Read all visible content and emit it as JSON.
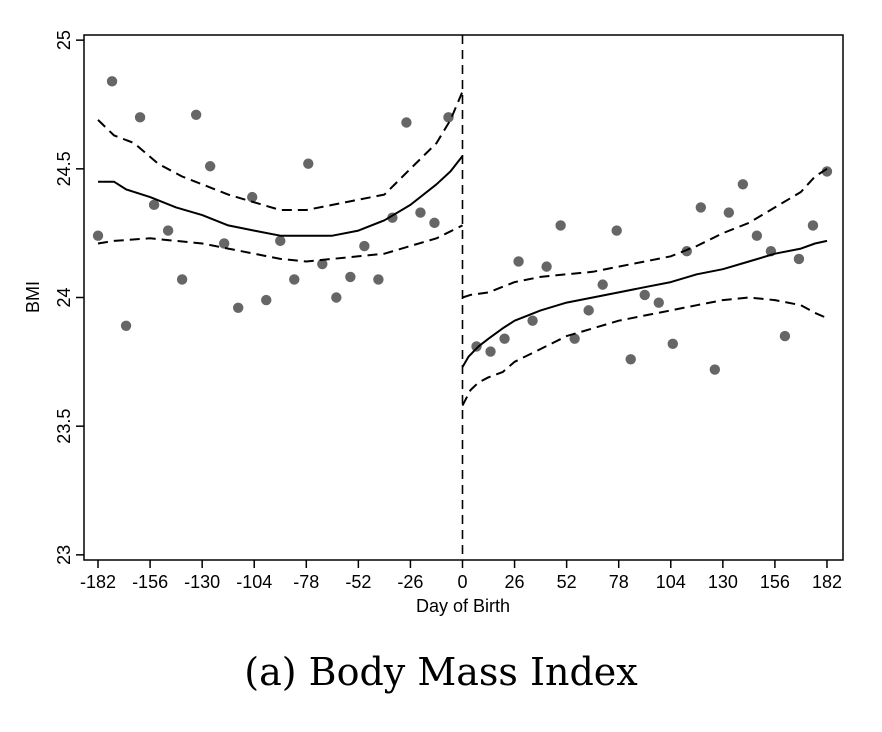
{
  "caption": "(a) Body Mass Index",
  "chart_data": {
    "type": "scatter",
    "title": "",
    "xlabel": "Day of Birth",
    "ylabel": "BMI",
    "xlim": [
      -189,
      190
    ],
    "ylim": [
      22.98,
      25.02
    ],
    "x_ticks": [
      -182,
      -156,
      -130,
      -104,
      -78,
      -52,
      -26,
      0,
      26,
      52,
      78,
      104,
      130,
      156,
      182
    ],
    "y_ticks": [
      23,
      23.5,
      24,
      24.5,
      25
    ],
    "y_tick_labels": [
      "23",
      "23.5",
      "24",
      "24.5",
      "25"
    ],
    "grid": false,
    "cutoff_line": {
      "x": 0,
      "style": "dashed"
    },
    "series": [
      {
        "kind": "points",
        "color": "#666666",
        "x": [
          -182,
          -175,
          -168,
          -161,
          -154,
          -147,
          -140,
          -133,
          -126,
          -119,
          -112,
          -105,
          -98,
          -91,
          -84,
          -77,
          -70,
          -63,
          -56,
          -49,
          -42,
          -35,
          -28,
          -21,
          -14,
          -7,
          7,
          14,
          21,
          28,
          35,
          42,
          49,
          56,
          63,
          70,
          77,
          84,
          91,
          98,
          105,
          112,
          119,
          126,
          133,
          140,
          147,
          154,
          161,
          168,
          175,
          182
        ],
        "y": [
          24.24,
          24.84,
          23.89,
          24.7,
          24.36,
          24.26,
          24.07,
          24.71,
          24.51,
          24.21,
          23.96,
          24.39,
          23.99,
          24.22,
          24.07,
          24.52,
          24.13,
          24.0,
          24.08,
          24.2,
          24.07,
          24.31,
          24.68,
          24.33,
          24.29,
          24.7,
          23.81,
          23.79,
          23.84,
          24.14,
          23.91,
          24.12,
          24.28,
          23.84,
          23.95,
          24.05,
          24.26,
          23.76,
          24.01,
          23.98,
          23.82,
          24.18,
          24.35,
          23.72,
          24.33,
          24.44,
          24.24,
          24.18,
          23.85,
          24.15,
          24.28,
          24.49
        ]
      },
      {
        "kind": "fit",
        "side": "left",
        "style": "solid",
        "x": [
          -182,
          -174,
          -168,
          -156,
          -143,
          -130,
          -117,
          -104,
          -91,
          -78,
          -65,
          -52,
          -39,
          -26,
          -13,
          -6,
          0
        ],
        "y": [
          24.45,
          24.45,
          24.42,
          24.39,
          24.35,
          24.32,
          24.28,
          24.26,
          24.24,
          24.24,
          24.24,
          24.26,
          24.3,
          24.36,
          24.44,
          24.49,
          24.55
        ]
      },
      {
        "kind": "ci_upper",
        "side": "left",
        "style": "dashed",
        "x": [
          -182,
          -174,
          -164,
          -152,
          -140,
          -130,
          -117,
          -104,
          -91,
          -78,
          -65,
          -52,
          -39,
          -26,
          -13,
          -6,
          0
        ],
        "y": [
          24.69,
          24.63,
          24.6,
          24.52,
          24.47,
          24.44,
          24.4,
          24.37,
          24.34,
          24.34,
          24.36,
          24.38,
          24.4,
          24.5,
          24.6,
          24.69,
          24.8
        ]
      },
      {
        "kind": "ci_lower",
        "side": "left",
        "style": "dashed",
        "x": [
          -182,
          -174,
          -156,
          -143,
          -130,
          -117,
          -104,
          -91,
          -78,
          -65,
          -52,
          -39,
          -26,
          -13,
          0
        ],
        "y": [
          24.21,
          24.22,
          24.23,
          24.22,
          24.21,
          24.19,
          24.17,
          24.15,
          24.14,
          24.15,
          24.16,
          24.17,
          24.2,
          24.23,
          24.28
        ]
      },
      {
        "kind": "fit",
        "side": "right",
        "style": "solid",
        "x": [
          0,
          3,
          8,
          13,
          20,
          26,
          39,
          52,
          65,
          78,
          91,
          104,
          117,
          130,
          143,
          156,
          169,
          176,
          182
        ],
        "y": [
          23.73,
          23.77,
          23.81,
          23.84,
          23.88,
          23.91,
          23.95,
          23.98,
          24.0,
          24.02,
          24.04,
          24.06,
          24.09,
          24.11,
          24.14,
          24.17,
          24.19,
          24.21,
          24.22
        ]
      },
      {
        "kind": "ci_upper",
        "side": "right",
        "style": "dashed",
        "x": [
          0,
          4,
          13,
          26,
          39,
          52,
          65,
          78,
          91,
          104,
          117,
          130,
          143,
          156,
          169,
          176,
          182
        ],
        "y": [
          24.0,
          24.01,
          24.02,
          24.06,
          24.08,
          24.09,
          24.1,
          24.12,
          24.14,
          24.16,
          24.2,
          24.25,
          24.29,
          24.35,
          24.41,
          24.47,
          24.5
        ]
      },
      {
        "kind": "ci_lower",
        "side": "right",
        "style": "dashed",
        "x": [
          0,
          4,
          8,
          13,
          20,
          26,
          39,
          52,
          65,
          78,
          91,
          104,
          117,
          130,
          143,
          156,
          169,
          176,
          182
        ],
        "y": [
          23.58,
          23.64,
          23.67,
          23.69,
          23.71,
          23.75,
          23.8,
          23.85,
          23.88,
          23.91,
          23.93,
          23.95,
          23.97,
          23.99,
          24.0,
          23.99,
          23.97,
          23.94,
          23.92
        ]
      }
    ]
  }
}
